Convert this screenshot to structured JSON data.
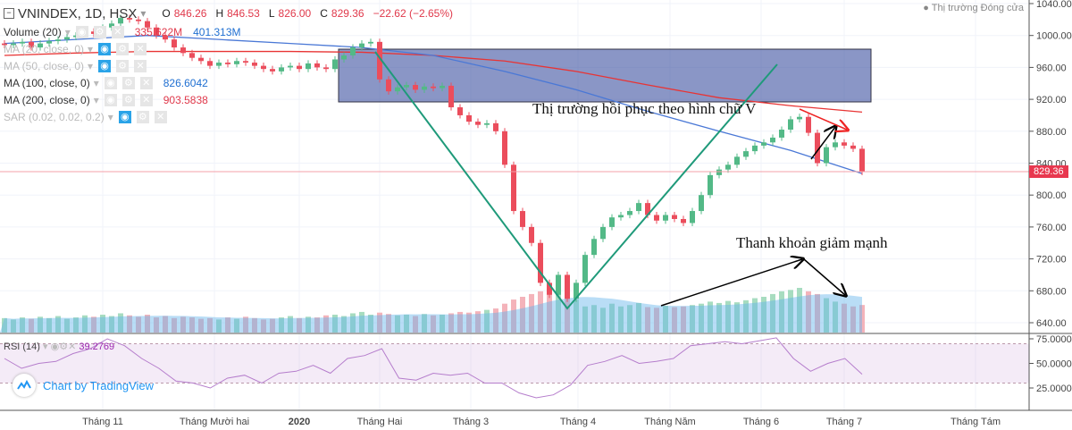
{
  "header": {
    "symbol": "VNINDEX, 1D, HSX",
    "o_label": "O",
    "o": "846.26",
    "h_label": "H",
    "h": "846.53",
    "l_label": "L",
    "l": "826.00",
    "c_label": "C",
    "c": "829.36",
    "change": "−22.62 (−2.65%)"
  },
  "indicators": [
    {
      "label": "Volume (20)",
      "values": [
        "335.622M",
        "401.313M"
      ]
    },
    {
      "label": "MA (20, close, 0)",
      "values": []
    },
    {
      "label": "MA (50, close, 0)",
      "values": []
    },
    {
      "label": "MA (100, close, 0)",
      "values": [
        "826.6042"
      ]
    },
    {
      "label": "MA (200, close, 0)",
      "values": [
        "903.5838"
      ]
    },
    {
      "label": "SAR (0.02, 0.02, 0.2)",
      "values": []
    }
  ],
  "market_status": "Thị trường Đóng cửa",
  "last_price": "829.36",
  "rsi": {
    "label": "RSI (14)",
    "value": "39.2769"
  },
  "watermark": "Chart by TradingView",
  "annotations": {
    "v_shape": "Thị trường hồi phục theo hình chữ V",
    "liquidity": "Thanh khoản giảm mạnh"
  },
  "colors": {
    "up": "#53b987",
    "down": "#eb4d5c",
    "ma100": "#4a78d6",
    "ma200": "#e83434",
    "box": "#5566aa",
    "trend": "#1f9a7a",
    "rsi": "#b57dcc"
  },
  "chart_data": {
    "type": "candlestick",
    "price_axis": {
      "ticks": [
        "1040.00",
        "1000.00",
        "960.00",
        "920.00",
        "880.00",
        "840.00",
        "800.00",
        "760.00",
        "720.00",
        "680.00",
        "640.00"
      ],
      "range": [
        640,
        1040
      ]
    },
    "rsi_axis": {
      "ticks": [
        "75.0000",
        "50.0000",
        "25.0000"
      ],
      "bands": [
        30,
        70
      ]
    },
    "x_ticks": [
      "Tháng 11",
      "Tháng Mười hai",
      "2020",
      "Tháng Hai",
      "Tháng 3",
      "Tháng 4",
      "Tháng Năm",
      "Tháng 6",
      "Tháng 7",
      "Tháng Tám"
    ],
    "closes": [
      988,
      990,
      992,
      985,
      990,
      993,
      995,
      998,
      1000,
      1005,
      1002,
      1010,
      1015,
      1022,
      1020,
      1018,
      1010,
      1000,
      995,
      985,
      978,
      972,
      968,
      962,
      966,
      964,
      968,
      966,
      962,
      958,
      955,
      960,
      962,
      958,
      965,
      960,
      958,
      970,
      975,
      985,
      990,
      992,
      945,
      930,
      935,
      938,
      932,
      936,
      934,
      937,
      910,
      900,
      892,
      888,
      890,
      880,
      838,
      780,
      760,
      740,
      690,
      675,
      700,
      670,
      690,
      725,
      745,
      760,
      772,
      775,
      780,
      790,
      775,
      768,
      775,
      770,
      765,
      780,
      800,
      825,
      832,
      838,
      848,
      855,
      862,
      866,
      872,
      882,
      895,
      898,
      878,
      840,
      860,
      866,
      862,
      858,
      829
    ],
    "volume_m": [
      210,
      190,
      220,
      200,
      230,
      210,
      240,
      200,
      220,
      250,
      230,
      260,
      240,
      280,
      250,
      230,
      260,
      220,
      240,
      210,
      230,
      220,
      200,
      210,
      190,
      220,
      200,
      230,
      210,
      190,
      200,
      220,
      240,
      210,
      230,
      220,
      250,
      260,
      240,
      280,
      300,
      260,
      290,
      270,
      250,
      260,
      240,
      270,
      250,
      260,
      280,
      300,
      290,
      310,
      330,
      350,
      420,
      480,
      520,
      560,
      600,
      640,
      560,
      520,
      480,
      380,
      400,
      360,
      420,
      380,
      400,
      430,
      370,
      360,
      390,
      370,
      380,
      400,
      420,
      450,
      430,
      460,
      440,
      470,
      500,
      520,
      560,
      600,
      620,
      650,
      600,
      560,
      500,
      450,
      420,
      380,
      401
    ],
    "ma100": [
      990,
      995,
      1000,
      995,
      990,
      985,
      975,
      955,
      932,
      905,
      880,
      856,
      827
    ],
    "ma200": [
      975,
      978,
      980,
      980,
      980,
      979,
      975,
      968,
      955,
      938,
      922,
      912,
      904
    ],
    "rsi": [
      55,
      45,
      50,
      52,
      60,
      65,
      75,
      68,
      55,
      45,
      32,
      30,
      25,
      35,
      38,
      30,
      40,
      42,
      48,
      40,
      55,
      58,
      65,
      35,
      33,
      40,
      38,
      40,
      30,
      30,
      20,
      15,
      18,
      28,
      48,
      52,
      58,
      50,
      52,
      55,
      68,
      70,
      72,
      70,
      73,
      76,
      55,
      42,
      50,
      55,
      39
    ]
  }
}
